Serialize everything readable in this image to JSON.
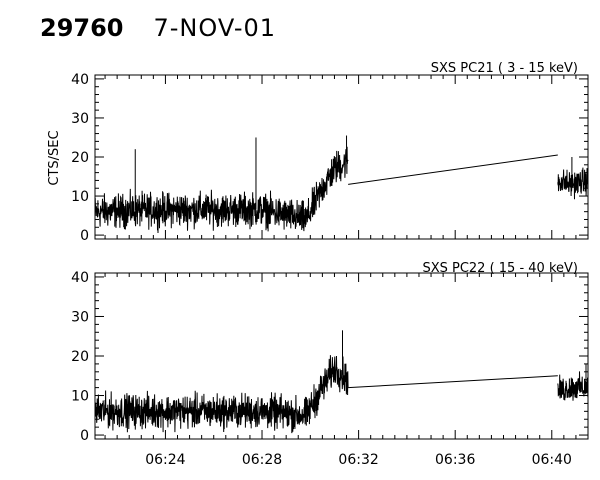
{
  "header": {
    "observation_id": "29760",
    "date": "7-NOV-01"
  },
  "chart_data": [
    {
      "type": "line",
      "title": "SXS PC21  (  3 - 15 keV)",
      "ylabel": "CTS/SEC",
      "xlabel": "",
      "xlim": [
        "06:21:05",
        "06:41:30"
      ],
      "ylim": [
        -1,
        41
      ],
      "yticks": [
        0,
        10,
        20,
        30,
        40
      ],
      "xticks": [
        "06:24",
        "06:28",
        "06:32",
        "06:36",
        "06:40"
      ],
      "show_x_tick_labels": false,
      "grid": false,
      "series": [
        {
          "data_gap": [
            "06:31:34",
            "06:40:15"
          ],
          "segments": [
            {
              "x": [
                "06:21:05",
                "06:24:00",
                "06:26:00",
                "06:28:00",
                "06:29:50",
                "06:30:30",
                "06:31:00",
                "06:31:34"
              ],
              "y": [
                6,
                6.5,
                6.5,
                6.5,
                4,
                12,
                17,
                19
              ],
              "noise": 3.2
            },
            {
              "x": [
                "06:40:15",
                "06:40:45",
                "06:41:30"
              ],
              "y": [
                14,
                13,
                14
              ],
              "noise": 2.5
            }
          ],
          "connector": {
            "x": [
              "06:31:34",
              "06:40:15"
            ],
            "y": [
              13,
              20.5
            ]
          },
          "spikes": [
            {
              "x": "06:22:45",
              "y": 22
            },
            {
              "x": "06:27:45",
              "y": 25
            },
            {
              "x": "06:31:30",
              "y": 25.5
            },
            {
              "x": "06:40:50",
              "y": 20
            }
          ]
        }
      ]
    },
    {
      "type": "line",
      "title": "SXS PC22  ( 15 - 40 keV)",
      "ylabel": "",
      "xlabel": "",
      "xlim": [
        "06:21:05",
        "06:41:30"
      ],
      "ylim": [
        -1,
        41
      ],
      "yticks": [
        0,
        10,
        20,
        30,
        40
      ],
      "xticks": [
        "06:24",
        "06:28",
        "06:32",
        "06:36",
        "06:40"
      ],
      "show_x_tick_labels": true,
      "grid": false,
      "series": [
        {
          "data_gap": [
            "06:31:34",
            "06:40:15"
          ],
          "segments": [
            {
              "x": [
                "06:21:05",
                "06:24:00",
                "06:26:00",
                "06:28:00",
                "06:29:50",
                "06:30:30",
                "06:31:00",
                "06:31:34"
              ],
              "y": [
                6,
                6,
                6,
                6,
                5,
                12,
                17,
                14
              ],
              "noise": 3.2
            },
            {
              "x": [
                "06:40:15",
                "06:40:45",
                "06:41:30"
              ],
              "y": [
                11,
                12,
                12
              ],
              "noise": 2.5
            }
          ],
          "connector": {
            "x": [
              "06:31:34",
              "06:40:15"
            ],
            "y": [
              12,
              15
            ]
          },
          "spikes": [
            {
              "x": "06:31:20",
              "y": 26.5
            },
            {
              "x": "06:41:25",
              "y": 18
            }
          ]
        }
      ]
    }
  ]
}
